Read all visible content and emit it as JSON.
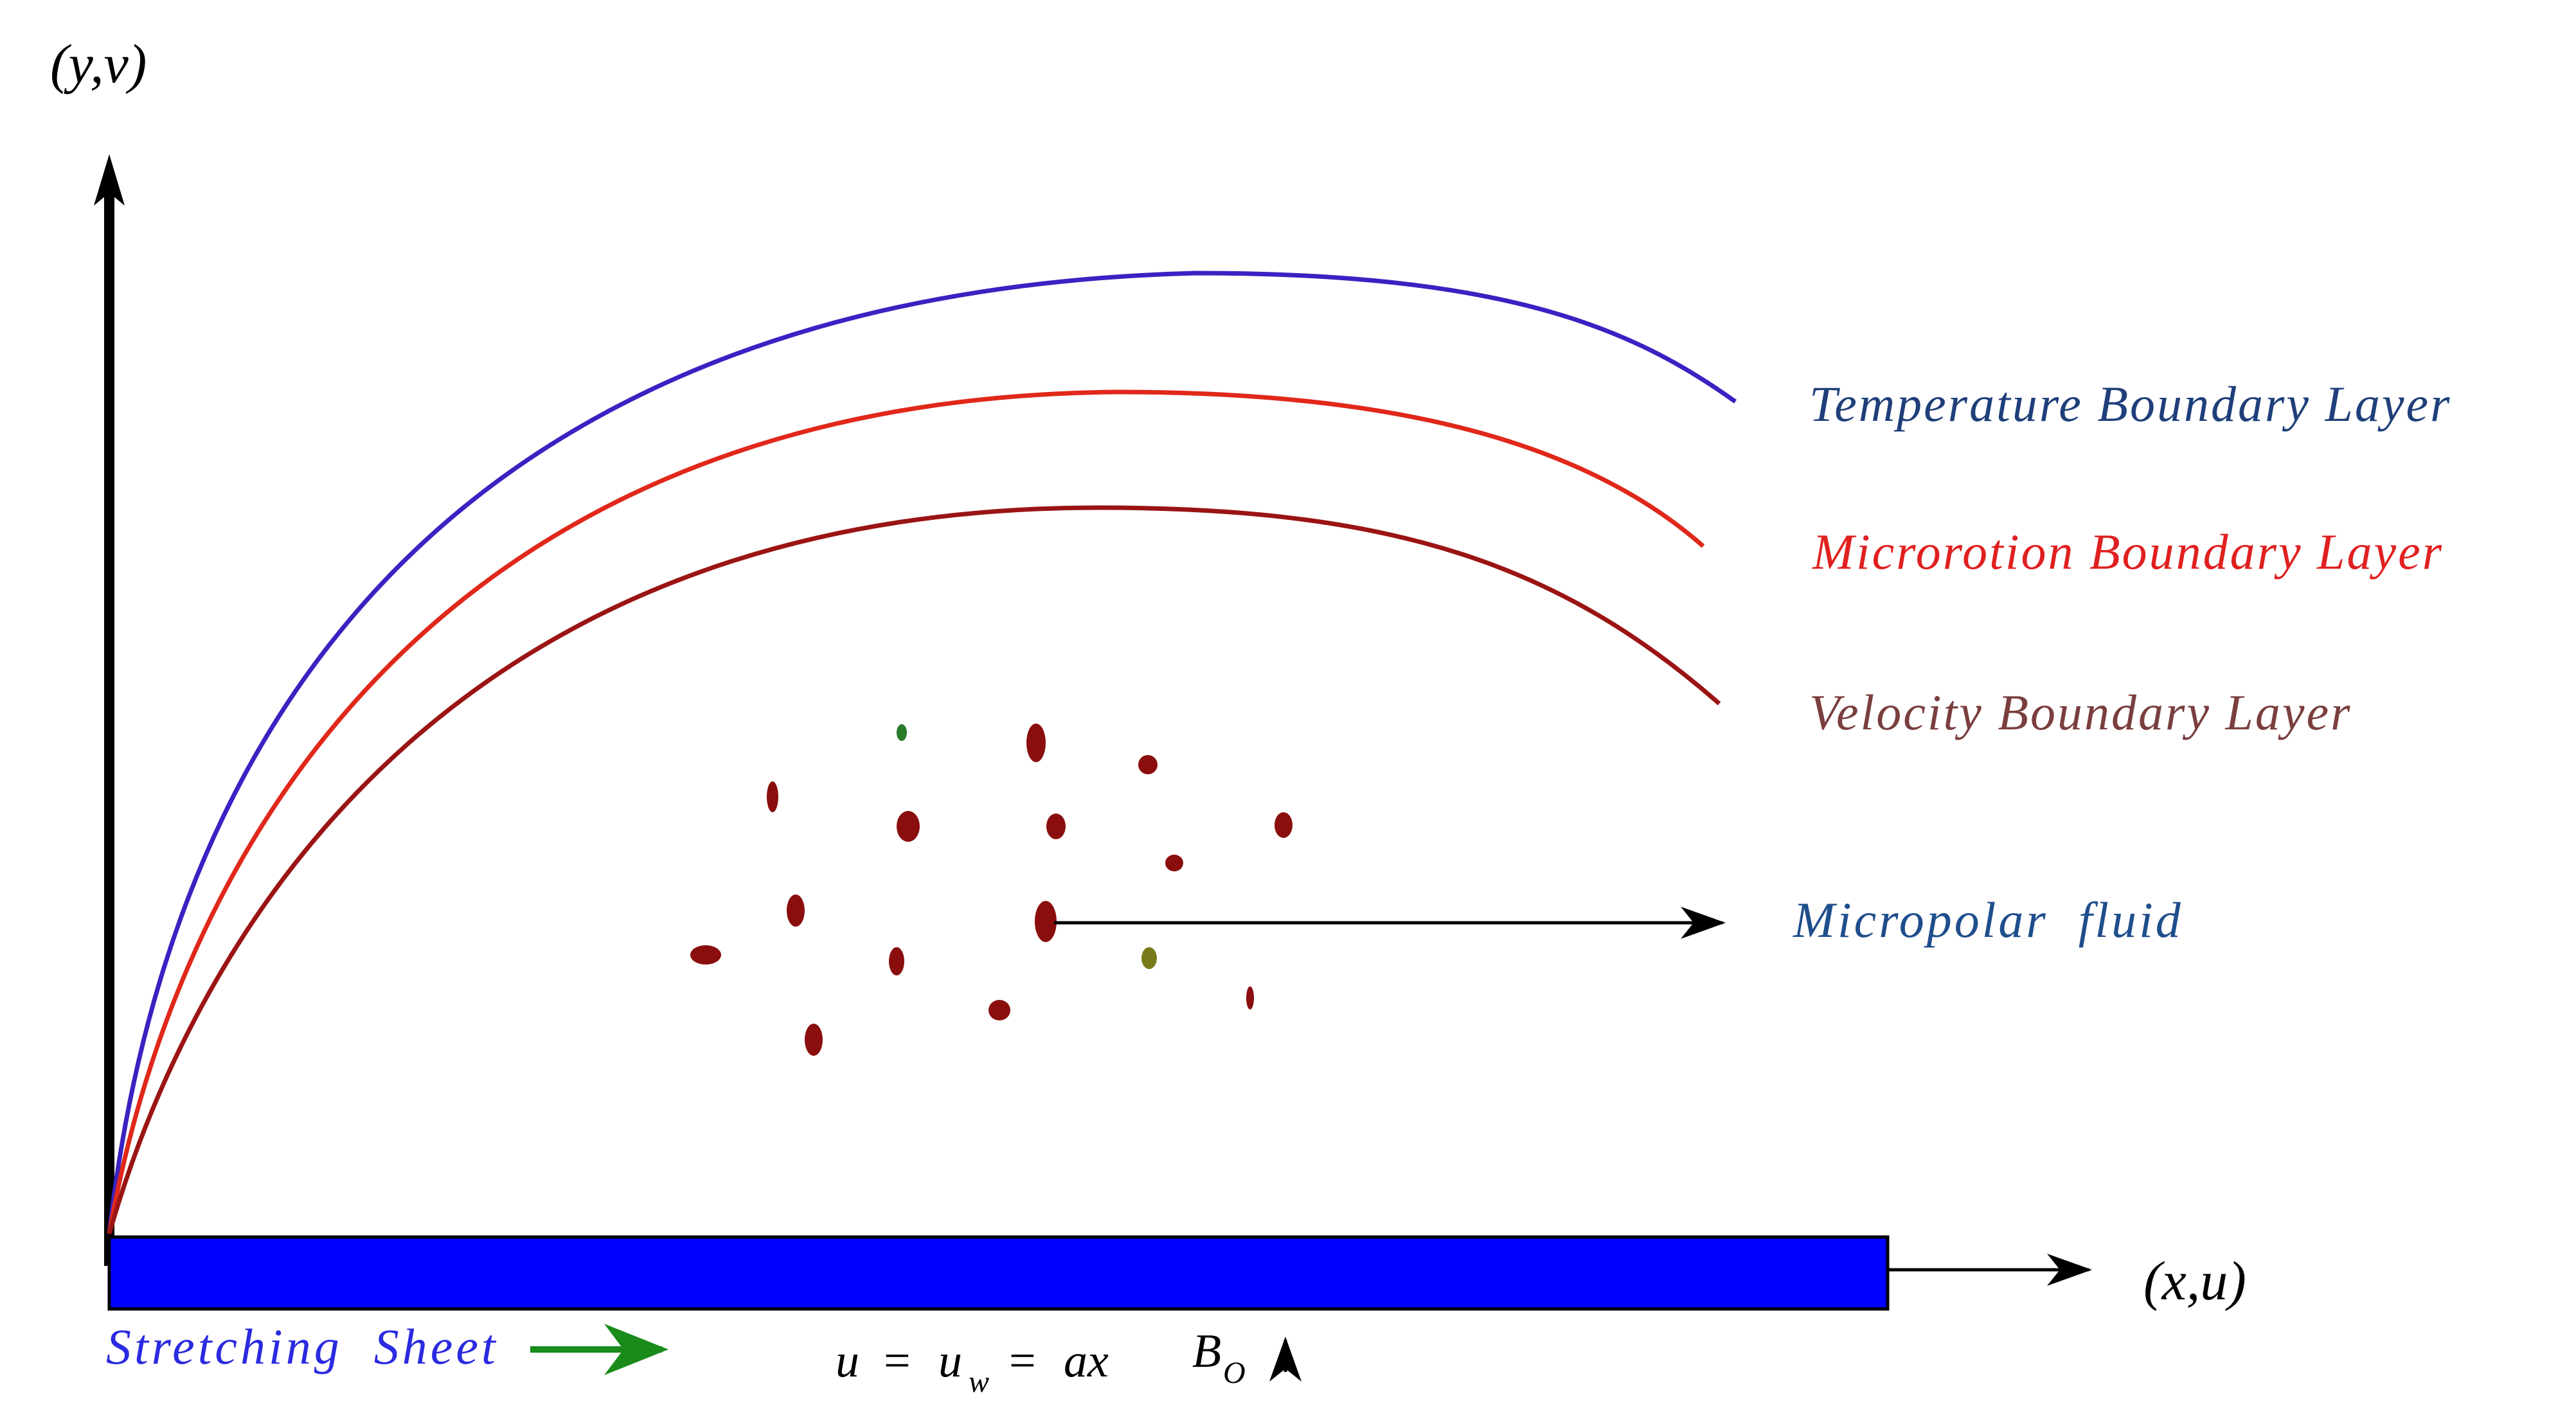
{
  "axes": {
    "y_label": "(y,v)",
    "x_label": "(x,u)"
  },
  "layers": [
    {
      "name": "Temperature Boundary Layer",
      "line_color": "#3a22c2",
      "text_color": "#1f3f7a"
    },
    {
      "name": "Microrotion Boundary Layer",
      "line_color": "#e0281a",
      "text_color": "#e02020"
    },
    {
      "name": "Velocity Boundary Layer",
      "line_color": "#9b1414",
      "text_color": "#7a3e3e"
    }
  ],
  "fluid": {
    "label": "Micropolar  fluid",
    "label_color": "#1f4e8c",
    "particle_color": "#8a0e0e"
  },
  "sheet": {
    "label": "Stretching  Sheet",
    "label_color": "#2a2ae0",
    "fill_color": "#0000ff",
    "arrow_color": "#1a8a1a"
  },
  "equation": {
    "u": "u",
    "eq1": "=",
    "uw_base": "u",
    "uw_sub": "w",
    "eq2": "=",
    "ax": "ax"
  },
  "magnetic_field": {
    "base": "B",
    "sub": "O"
  }
}
